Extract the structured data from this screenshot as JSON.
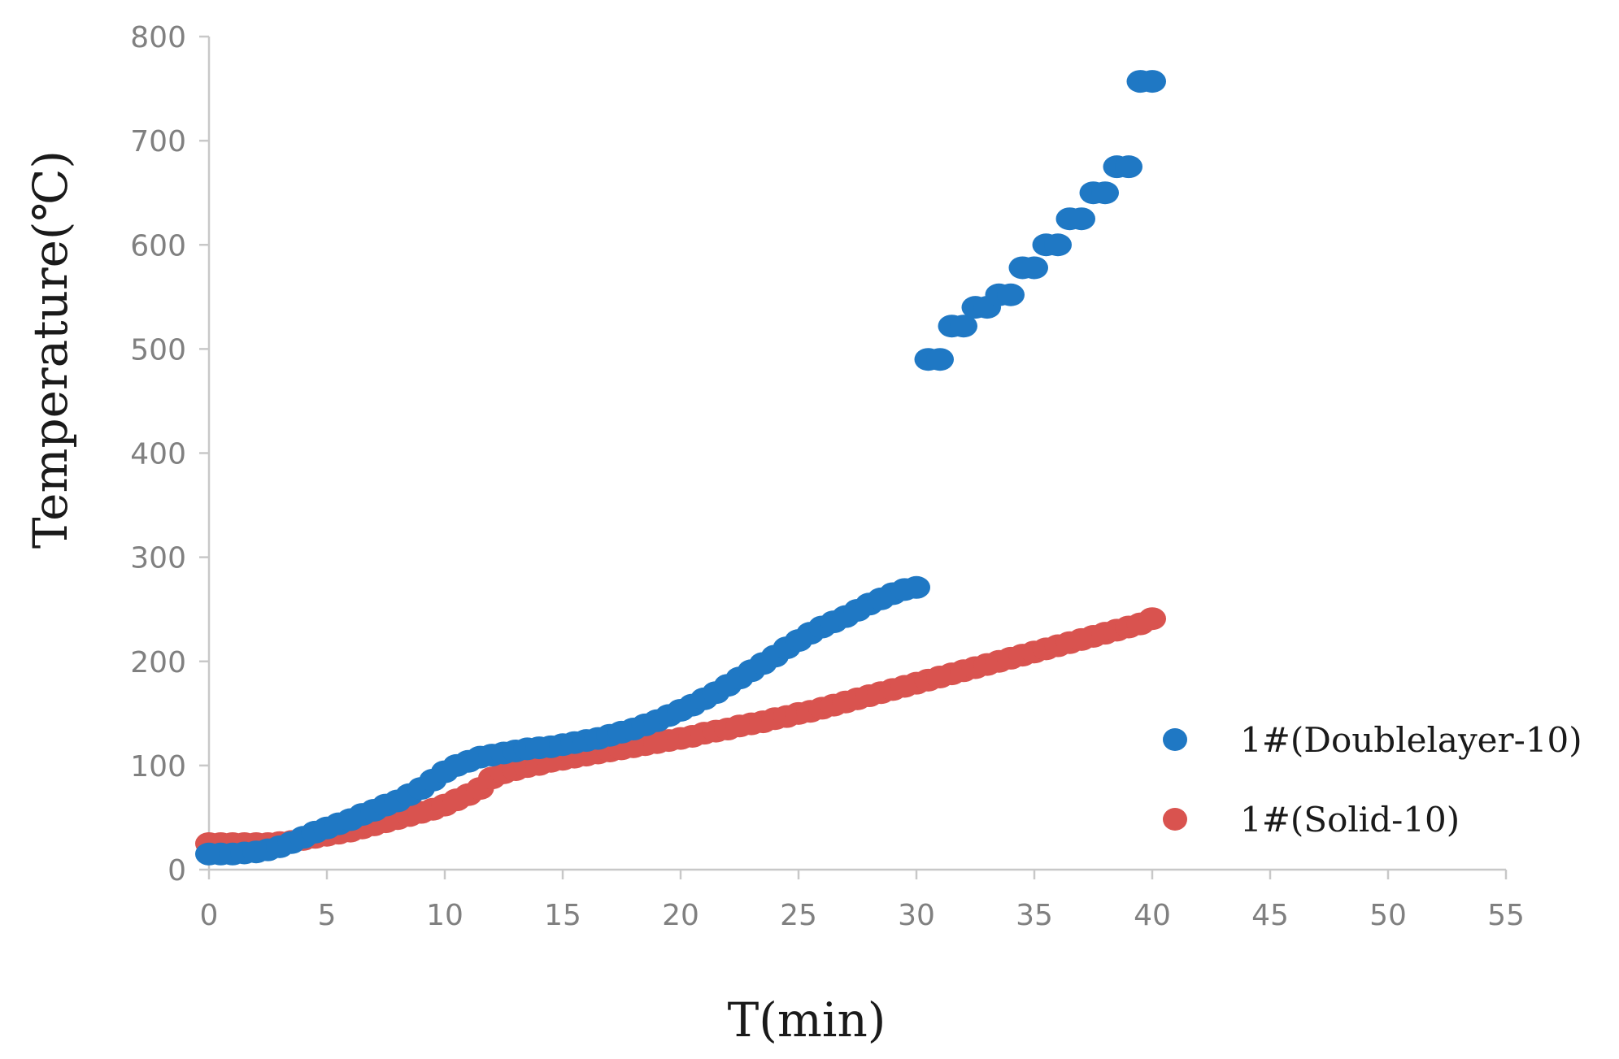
{
  "chart_data": {
    "type": "scatter",
    "xlabel": "T(min)",
    "ylabel": "Temperature(℃)",
    "xlim": [
      0,
      55
    ],
    "ylim": [
      0,
      800
    ],
    "xticks": [
      0,
      5,
      10,
      15,
      20,
      25,
      30,
      35,
      40,
      45,
      50,
      55
    ],
    "yticks": [
      0,
      100,
      200,
      300,
      400,
      500,
      600,
      700,
      800
    ],
    "grid": false,
    "legend_position": "bottom-right",
    "series": [
      {
        "name": "1#(Doublelayer-10)",
        "color": "#1f78c4",
        "x": [
          0,
          0.5,
          1,
          1.5,
          2,
          2.5,
          3,
          3.5,
          4,
          4.5,
          5,
          5.5,
          6,
          6.5,
          7,
          7.5,
          8,
          8.5,
          9,
          9.5,
          10,
          10.5,
          11,
          11.5,
          12,
          12.5,
          13,
          13.5,
          14,
          14.5,
          15,
          15.5,
          16,
          16.5,
          17,
          17.5,
          18,
          18.5,
          19,
          19.5,
          20,
          20.5,
          21,
          21.5,
          22,
          22.5,
          23,
          23.5,
          24,
          24.5,
          25,
          25.5,
          26,
          26.5,
          27,
          27.5,
          28,
          28.5,
          29,
          29.5,
          30,
          30.5,
          31,
          31.5,
          32,
          32.5,
          33,
          33.5,
          34,
          34.5,
          35,
          35.5,
          36,
          36.5,
          37,
          37.5,
          38,
          38.5,
          39,
          39.5,
          40
        ],
        "y": [
          15,
          15,
          15,
          16,
          17,
          19,
          22,
          26,
          31,
          36,
          40,
          44,
          48,
          53,
          57,
          62,
          66,
          72,
          78,
          86,
          94,
          100,
          104,
          108,
          110,
          112,
          114,
          116,
          117,
          118,
          120,
          122,
          124,
          126,
          129,
          132,
          135,
          139,
          143,
          148,
          153,
          158,
          164,
          170,
          177,
          184,
          191,
          198,
          205,
          213,
          220,
          227,
          233,
          238,
          243,
          249,
          255,
          260,
          265,
          269,
          271,
          490,
          490,
          522,
          522,
          540,
          540,
          552,
          552,
          578,
          578,
          600,
          600,
          625,
          625,
          650,
          650,
          675,
          675,
          757,
          757
        ]
      },
      {
        "name": "1#(Solid-10)",
        "color": "#d9534f",
        "x": [
          0,
          0.5,
          1,
          1.5,
          2,
          2.5,
          3,
          3.5,
          4,
          4.5,
          5,
          5.5,
          6,
          6.5,
          7,
          7.5,
          8,
          8.5,
          9,
          9.5,
          10,
          10.5,
          11,
          11.5,
          12,
          12.5,
          13,
          13.5,
          14,
          14.5,
          15,
          15.5,
          16,
          16.5,
          17,
          17.5,
          18,
          18.5,
          19,
          19.5,
          20,
          20.5,
          21,
          21.5,
          22,
          22.5,
          23,
          23.5,
          24,
          24.5,
          25,
          25.5,
          26,
          26.5,
          27,
          27.5,
          28,
          28.5,
          29,
          29.5,
          30,
          30.5,
          31,
          31.5,
          32,
          32.5,
          33,
          33.5,
          34,
          34.5,
          35,
          35.5,
          36,
          36.5,
          37,
          37.5,
          38,
          38.5,
          39,
          39.5,
          40
        ],
        "y": [
          25,
          25,
          25,
          25,
          25,
          25,
          26,
          27,
          29,
          31,
          33,
          35,
          37,
          40,
          43,
          46,
          49,
          52,
          55,
          58,
          62,
          67,
          72,
          78,
          88,
          93,
          96,
          99,
          101,
          104,
          106,
          108,
          110,
          112,
          114,
          116,
          118,
          120,
          122,
          124,
          126,
          128,
          131,
          133,
          135,
          138,
          140,
          142,
          145,
          147,
          150,
          152,
          155,
          158,
          161,
          164,
          167,
          170,
          173,
          176,
          179,
          182,
          185,
          188,
          191,
          194,
          197,
          200,
          203,
          206,
          209,
          212,
          215,
          218,
          221,
          224,
          227,
          230,
          233,
          236,
          241
        ]
      }
    ]
  }
}
